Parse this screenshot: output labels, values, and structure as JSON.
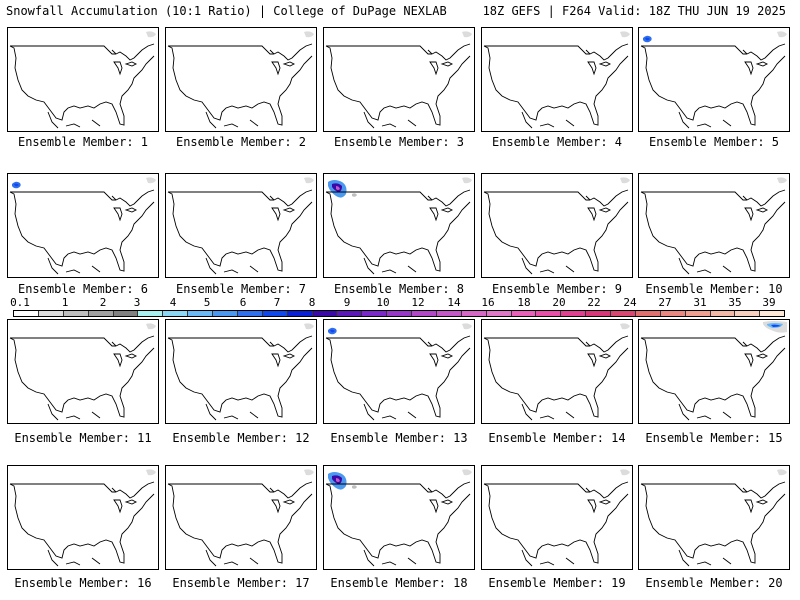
{
  "header": {
    "left_title": "Snowfall Accumulation (10:1 Ratio) | College of DuPage NEXLAB",
    "right_title": "18Z GEFS | F264 Valid: 18Z THU JUN 19 2025"
  },
  "panels": [
    {
      "label": "Ensemble Member: 1",
      "snow": "trace"
    },
    {
      "label": "Ensemble Member: 2",
      "snow": "trace"
    },
    {
      "label": "Ensemble Member: 3",
      "snow": "trace"
    },
    {
      "label": "Ensemble Member: 4",
      "snow": "trace"
    },
    {
      "label": "Ensemble Member: 5",
      "snow": "northwest-light"
    },
    {
      "label": "Ensemble Member: 6",
      "snow": "northwest-light"
    },
    {
      "label": "Ensemble Member: 7",
      "snow": "trace"
    },
    {
      "label": "Ensemble Member: 8",
      "snow": "northwest-moderate"
    },
    {
      "label": "Ensemble Member: 9",
      "snow": "trace"
    },
    {
      "label": "Ensemble Member: 10",
      "snow": "trace"
    },
    {
      "label": "Ensemble Member: 11",
      "snow": "trace"
    },
    {
      "label": "Ensemble Member: 12",
      "snow": "trace"
    },
    {
      "label": "Ensemble Member: 13",
      "snow": "northwest-light"
    },
    {
      "label": "Ensemble Member: 14",
      "snow": "trace"
    },
    {
      "label": "Ensemble Member: 15",
      "snow": "northeast-light"
    },
    {
      "label": "Ensemble Member: 16",
      "snow": "trace"
    },
    {
      "label": "Ensemble Member: 17",
      "snow": "trace"
    },
    {
      "label": "Ensemble Member: 18",
      "snow": "northwest-moderate"
    },
    {
      "label": "Ensemble Member: 19",
      "snow": "trace"
    },
    {
      "label": "Ensemble Member: 20",
      "snow": "trace"
    }
  ],
  "colorbar": {
    "labels": [
      "0.1",
      "1",
      "2",
      "3",
      "4",
      "5",
      "6",
      "7",
      "8",
      "9",
      "10",
      "12",
      "14",
      "16",
      "18",
      "20",
      "22",
      "24",
      "27",
      "31",
      "35",
      "39"
    ],
    "colors": [
      "#ffffff",
      "#dcdcdc",
      "#bebebe",
      "#a0a0a0",
      "#808080",
      "#a8f0ee",
      "#8ad8f5",
      "#6ab8f5",
      "#4a98f0",
      "#3070ee",
      "#1048ee",
      "#0a20d8",
      "#3a0aa8",
      "#5a18b8",
      "#7a28c8",
      "#9838c8",
      "#b048c8",
      "#c458c8",
      "#d668c8",
      "#e078c8",
      "#e860b8",
      "#e850a8",
      "#e04090",
      "#d83878",
      "#d84870",
      "#e07070",
      "#e88880",
      "#f0a090",
      "#f4b8a8",
      "#f8d0c0",
      "#fce8d8"
    ]
  }
}
